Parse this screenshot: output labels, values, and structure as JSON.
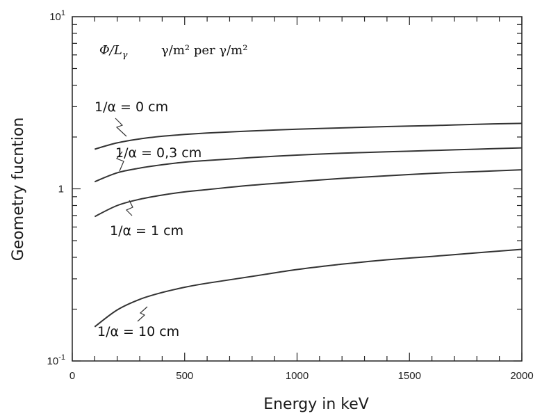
{
  "chart_data": {
    "type": "line",
    "title": "",
    "xlabel": "Energy  in keV",
    "ylabel": "Geometry fucntion",
    "xlim": [
      0,
      2000
    ],
    "ylim": [
      0.1,
      10
    ],
    "y_scale": "log",
    "grid": false,
    "x_ticks": [
      "0",
      "500",
      "1000",
      "1500",
      "2000"
    ],
    "y_tick_base": "10",
    "y_tick_exps": [
      "-1",
      "1"
    ],
    "y_tick_one": "1",
    "unit_note": {
      "quantity": "Φ/L",
      "quantity_sub": "γ",
      "text_a": "γ/m² per ",
      "text_b": "γ/m²"
    },
    "series": [
      {
        "label": "1/α = 0 cm",
        "x": [
          100,
          200,
          300,
          400,
          500,
          600,
          800,
          1000,
          1200,
          1400,
          1600,
          1800,
          2000
        ],
        "y": [
          1.7,
          1.85,
          1.95,
          2.02,
          2.07,
          2.11,
          2.17,
          2.22,
          2.26,
          2.3,
          2.33,
          2.37,
          2.4
        ]
      },
      {
        "label": "1/α = 0,3 cm",
        "x": [
          100,
          200,
          300,
          400,
          500,
          600,
          800,
          1000,
          1200,
          1400,
          1600,
          1800,
          2000
        ],
        "y": [
          1.1,
          1.24,
          1.32,
          1.38,
          1.43,
          1.46,
          1.52,
          1.57,
          1.61,
          1.64,
          1.67,
          1.7,
          1.73
        ]
      },
      {
        "label": "1/α = 1 cm",
        "x": [
          100,
          200,
          300,
          400,
          500,
          600,
          800,
          1000,
          1200,
          1400,
          1600,
          1800,
          2000
        ],
        "y": [
          0.69,
          0.8,
          0.87,
          0.92,
          0.96,
          0.99,
          1.05,
          1.1,
          1.15,
          1.19,
          1.23,
          1.26,
          1.29
        ]
      },
      {
        "label": "1/α = 10 cm",
        "x": [
          100,
          200,
          300,
          400,
          500,
          600,
          800,
          1000,
          1200,
          1400,
          1600,
          1800,
          2000
        ],
        "y": [
          0.158,
          0.198,
          0.228,
          0.25,
          0.268,
          0.283,
          0.31,
          0.34,
          0.365,
          0.387,
          0.405,
          0.425,
          0.445
        ]
      }
    ]
  }
}
